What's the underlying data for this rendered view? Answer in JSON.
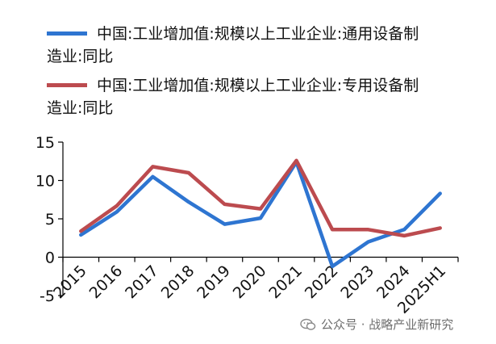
{
  "chart_data": {
    "type": "line",
    "categories": [
      "2015",
      "2016",
      "2017",
      "2018",
      "2019",
      "2020",
      "2021",
      "2022",
      "2023",
      "2024",
      "2025H1"
    ],
    "series": [
      {
        "name": "中国:工业增加值:规模以上工业企业:通用设备制造业:同比",
        "color": "#2e75d1",
        "values": [
          2.9,
          5.9,
          10.5,
          7.2,
          4.3,
          5.1,
          12.4,
          -1.2,
          2.0,
          3.6,
          8.3
        ]
      },
      {
        "name": "中国:工业增加值:规模以上工业企业:专用设备制造业:同比",
        "color": "#bc4b4f",
        "values": [
          3.4,
          6.7,
          11.8,
          11.0,
          6.9,
          6.3,
          12.6,
          3.6,
          3.6,
          2.8,
          3.8
        ]
      }
    ],
    "ylim": [
      -5,
      15
    ],
    "yticks": [
      "15",
      "10",
      "5",
      "0",
      "-5"
    ],
    "grid": false,
    "legend": "top",
    "title": "",
    "xlabel": "",
    "ylabel": ""
  },
  "legend": [
    {
      "line1": "中国:工业增加值:规模以上工业企业:通用设备制",
      "line2": "造业:同比"
    },
    {
      "line1": "中国:工业增加值:规模以上工业企业:专用设备制",
      "line2": "造业:同比"
    }
  ],
  "watermark": {
    "text": "公众号 · 战略产业新研究",
    "icon": "wechat-icon"
  }
}
